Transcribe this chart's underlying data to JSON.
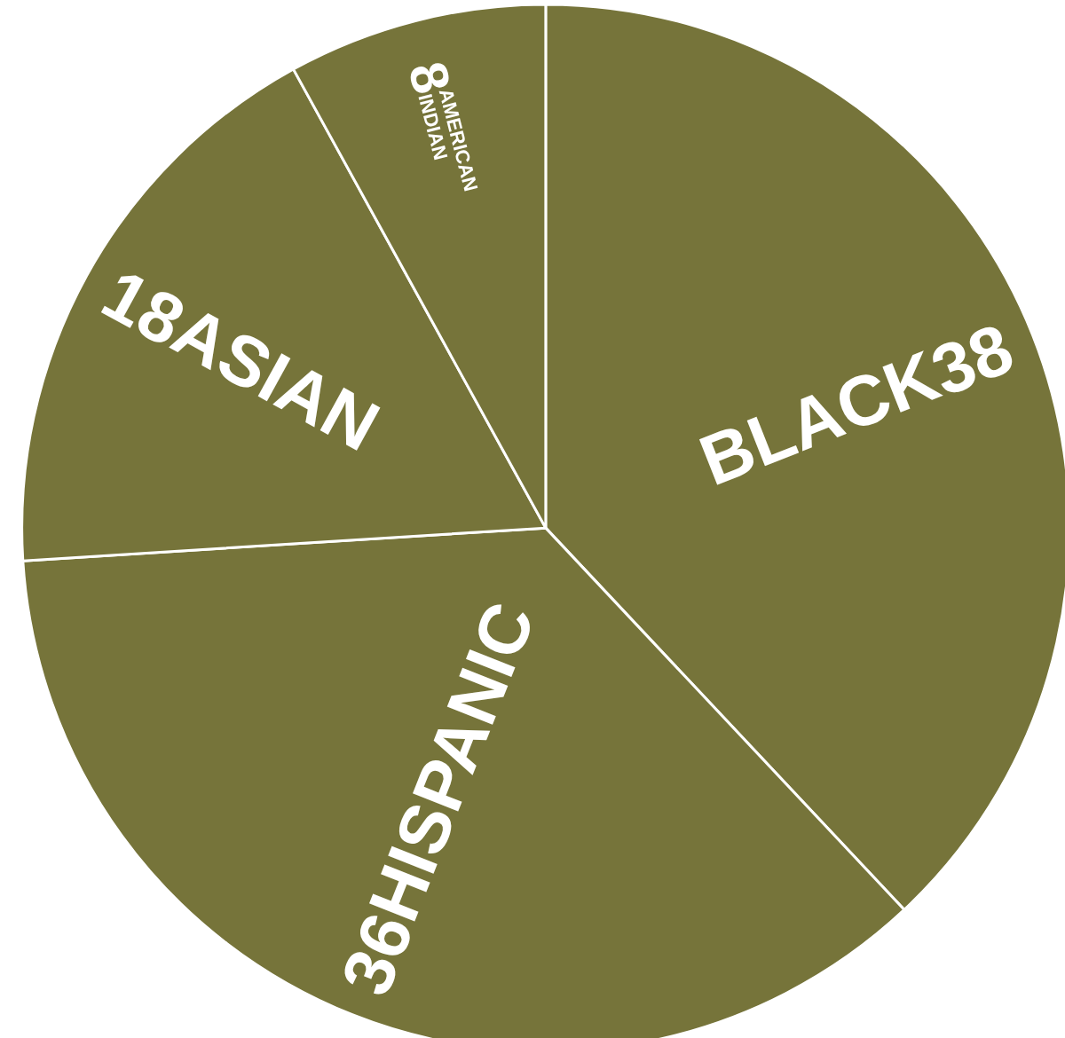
{
  "chart_data": {
    "type": "pie",
    "categories": [
      "BLACK",
      "HISPANIC",
      "ASIAN",
      "AMERICAN INDIAN"
    ],
    "values": [
      38,
      36,
      18,
      8
    ],
    "colors": [
      "#76743a",
      "#76743a",
      "#76743a",
      "#76743a"
    ],
    "data_labels": true
  }
}
